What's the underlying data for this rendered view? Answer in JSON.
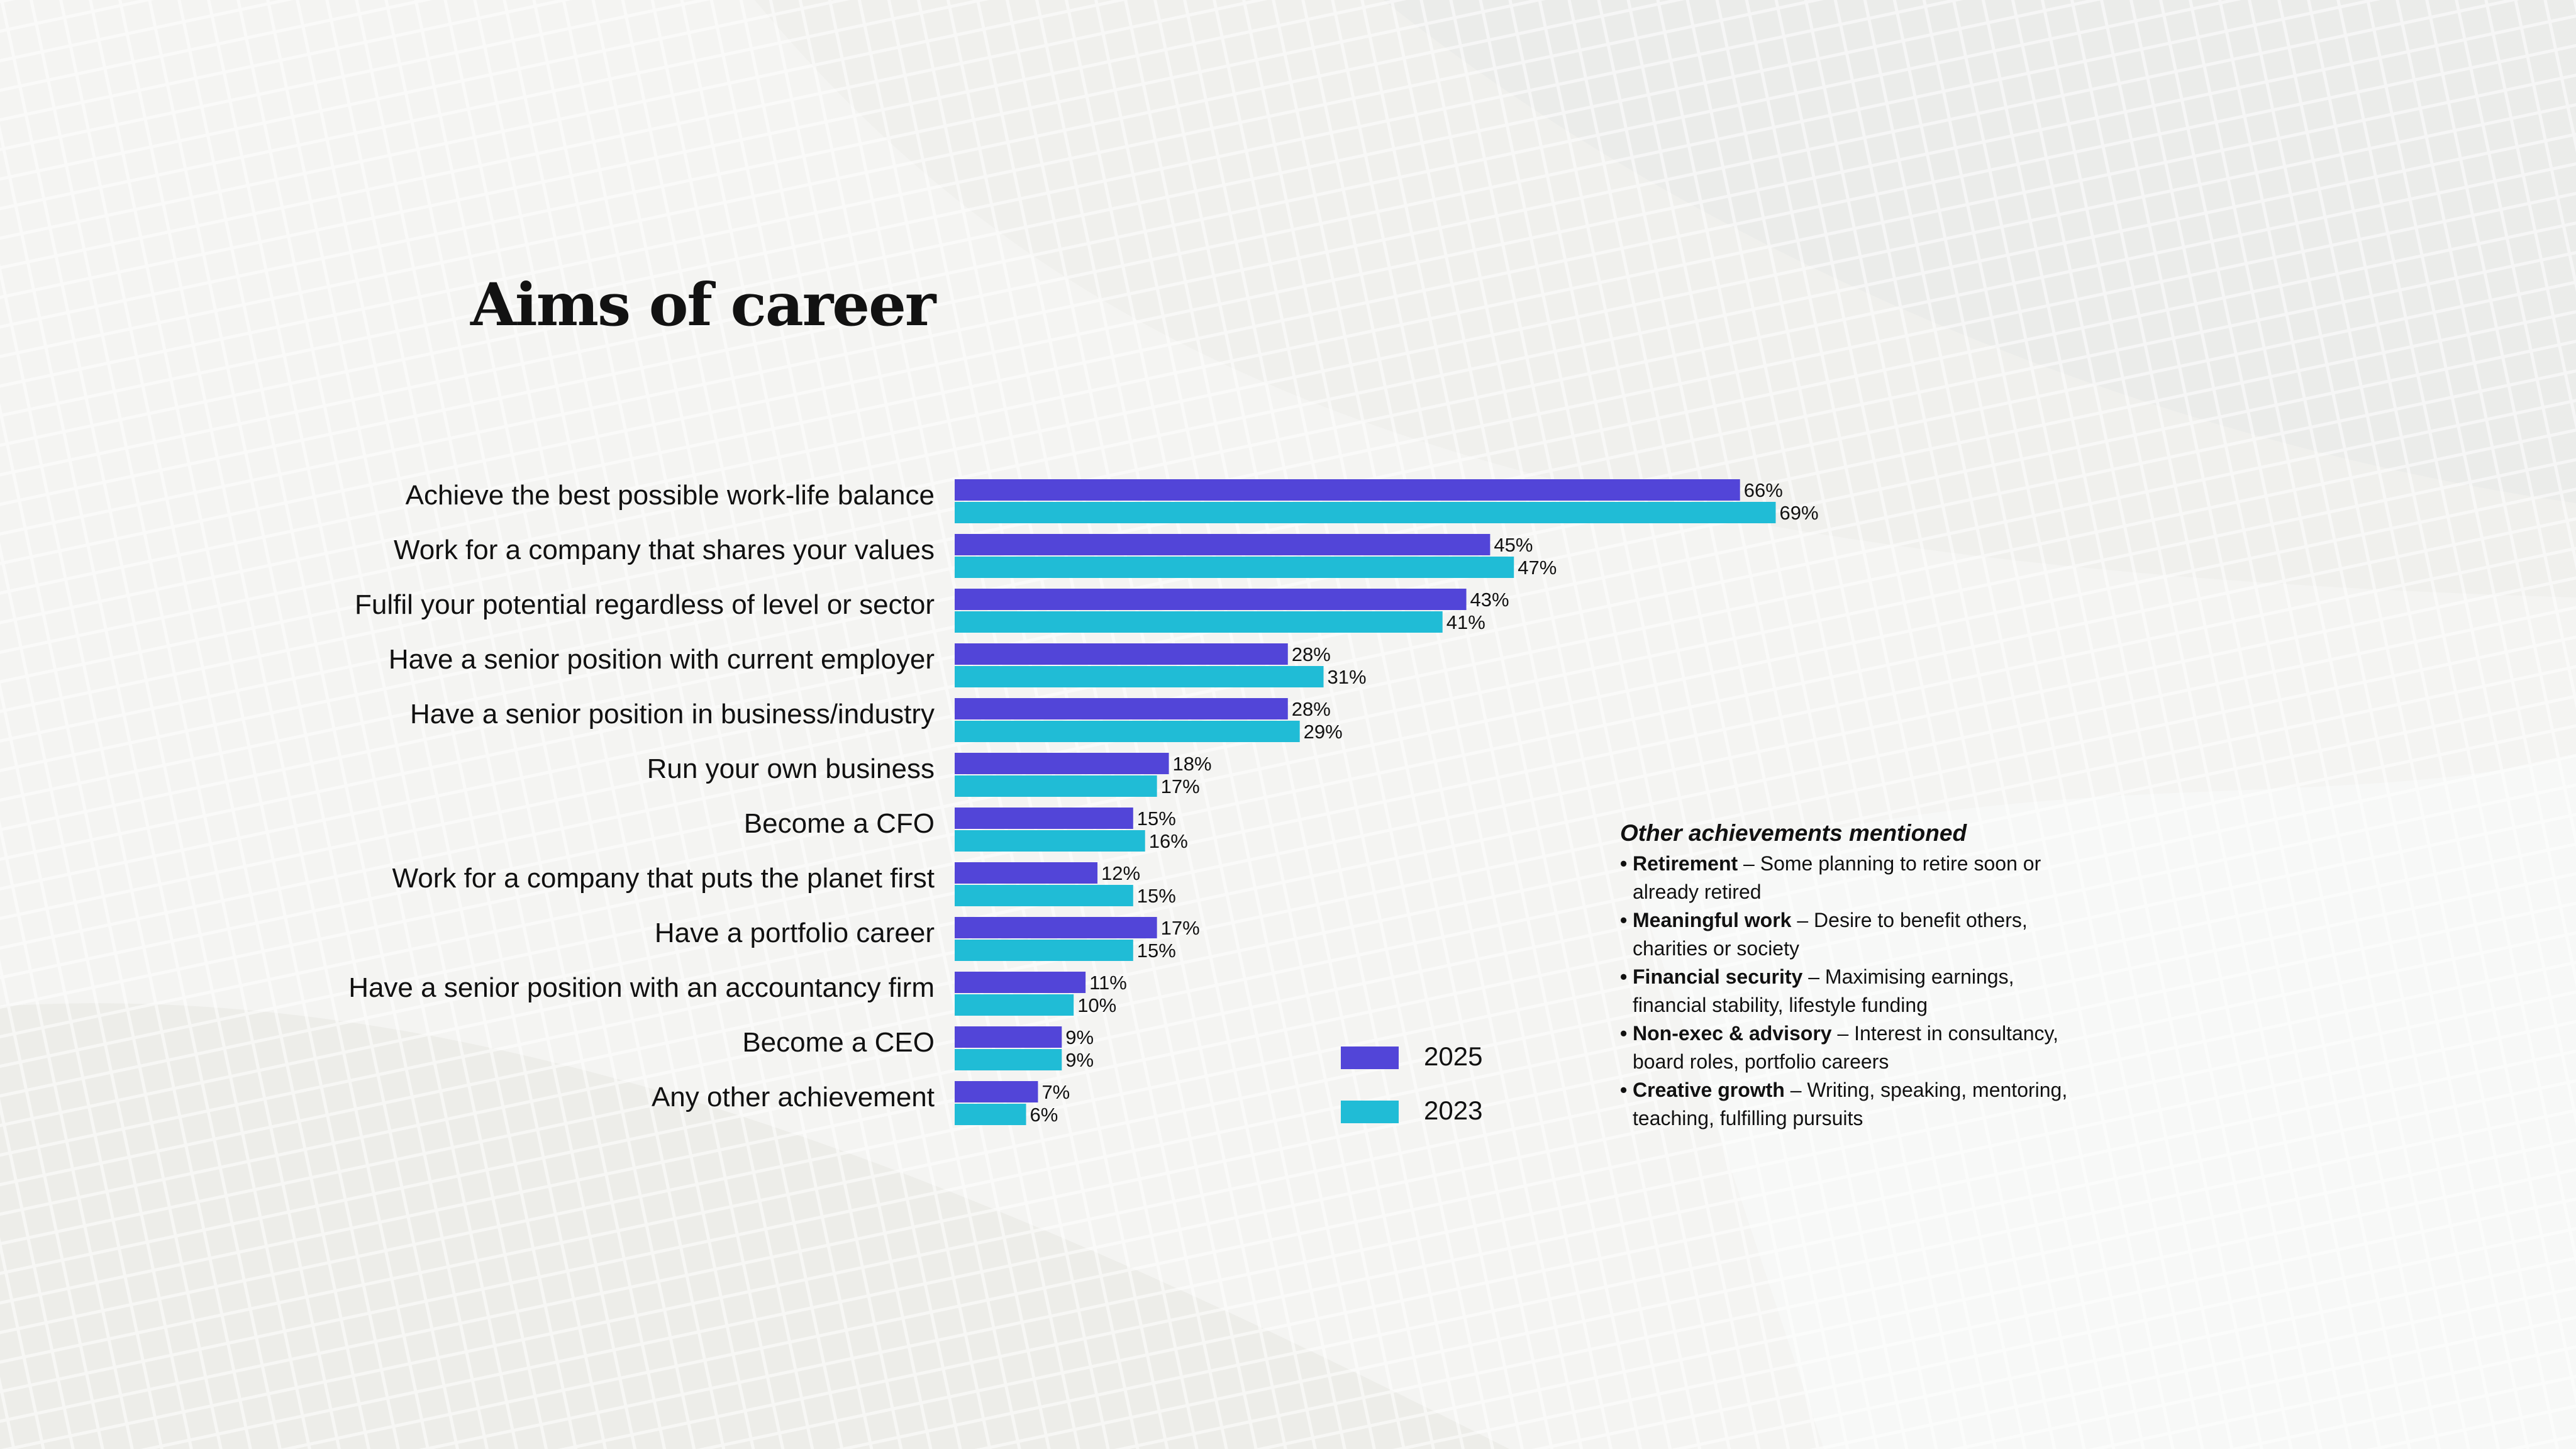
{
  "page": {
    "title": "Aims of career"
  },
  "colors": {
    "series_2025": "#5245d8",
    "series_2023": "#20bcd6",
    "text": "#111111"
  },
  "chart_data": {
    "type": "bar",
    "orientation": "horizontal",
    "title": "Aims of career",
    "xlabel": "",
    "ylabel": "",
    "grid": false,
    "legend_placement": "bottom-right",
    "xlim": [
      0,
      100
    ],
    "categories": [
      "Achieve the best possible work-life balance",
      "Work for a company that shares your values",
      "Fulfil your potential regardless of level or sector",
      "Have a senior position with current employer",
      "Have a senior position in business/industry",
      "Run your own business",
      "Become a CFO",
      "Work for a company that puts the planet first",
      "Have a portfolio career",
      "Have a senior position with an accountancy firm",
      "Become a CEO",
      "Any other achievement"
    ],
    "series": [
      {
        "name": "2025",
        "color": "#5245d8",
        "values": [
          66,
          45,
          43,
          28,
          28,
          18,
          15,
          12,
          17,
          11,
          9,
          7
        ],
        "labels": [
          "66%",
          "45%",
          "43%",
          "28%",
          "28%",
          "18%",
          "15%",
          "12%",
          "17%",
          "11%",
          "9%",
          "7%"
        ]
      },
      {
        "name": "2023",
        "color": "#20bcd6",
        "values": [
          69,
          47,
          41,
          31,
          29,
          17,
          16,
          15,
          15,
          10,
          9,
          6
        ],
        "labels": [
          "69%",
          "47%",
          "41%",
          "31%",
          "29%",
          "17%",
          "16%",
          "15%",
          "15%",
          "10%",
          "9%",
          "6%"
        ]
      }
    ]
  },
  "legend": {
    "items": [
      {
        "label": "2025",
        "color": "#5245d8"
      },
      {
        "label": "2023",
        "color": "#20bcd6"
      }
    ]
  },
  "notes": {
    "title": "Other achievements mentioned",
    "items": [
      {
        "head": "Retirement",
        "text": " – Some planning to retire soon or already retired"
      },
      {
        "head": "Meaningful work",
        "text": " – Desire to benefit others, charities or society"
      },
      {
        "head": "Financial security",
        "text": " – Maximising earnings, financial stability, lifestyle funding"
      },
      {
        "head": "Non-exec & advisory",
        "text": " – Interest in consultancy, board roles, portfolio careers"
      },
      {
        "head": "Creative growth",
        "text": " – Writing, speaking, mentoring, teaching, fulfilling pursuits"
      }
    ]
  }
}
